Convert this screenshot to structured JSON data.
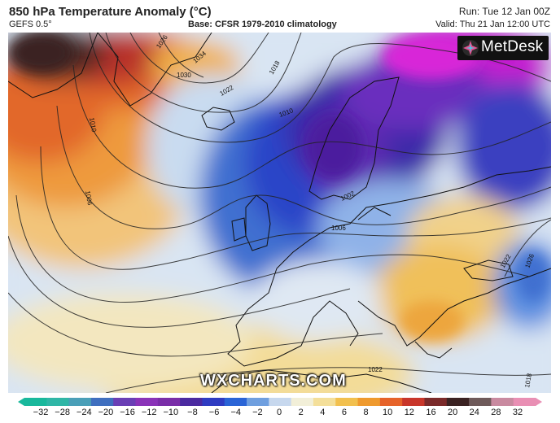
{
  "header": {
    "title": "850 hPa Temperature Anomaly (°C)",
    "model": "GEFS 0.5°",
    "base": "Base: CFSR 1979-2010 climatology",
    "run": "Run: Tue 12 Jan 00Z",
    "valid": "Valid: Thu 21 Jan 12:00 UTC"
  },
  "branding": {
    "logo_text": "MetDesk",
    "watermark": "WXCHARTS.COM"
  },
  "isobars": [
    {
      "label": "1026"
    },
    {
      "label": "1034"
    },
    {
      "label": "1030"
    },
    {
      "label": "1022"
    },
    {
      "label": "1018"
    },
    {
      "label": "1010"
    },
    {
      "label": "1006"
    },
    {
      "label": "1010"
    },
    {
      "label": "1002"
    },
    {
      "label": "1006"
    },
    {
      "label": "1022"
    },
    {
      "label": "1026"
    },
    {
      "label": "1018"
    },
    {
      "label": "1022"
    }
  ],
  "colorbar": {
    "ticks": [
      "−32",
      "−28",
      "−24",
      "−20",
      "−16",
      "−12",
      "−10",
      "−8",
      "−6",
      "−4",
      "−2",
      "0",
      "2",
      "4",
      "6",
      "8",
      "10",
      "12",
      "16",
      "20",
      "24",
      "28",
      "32"
    ],
    "colors": [
      "#19b89c",
      "#2fb6a6",
      "#4a9fb8",
      "#3f6fbf",
      "#6a3fb5",
      "#8a33b8",
      "#7a2ea8",
      "#4b2aa0",
      "#2f3cc2",
      "#2a64d6",
      "#6f9fdf",
      "#c7d8ee",
      "#f2efd8",
      "#f4df9a",
      "#f2c04e",
      "#ef9a2e",
      "#e6632a",
      "#c8362a",
      "#7a2a2a",
      "#3a2222",
      "#6e5a5a",
      "#c98aa0",
      "#e98fb4"
    ]
  }
}
